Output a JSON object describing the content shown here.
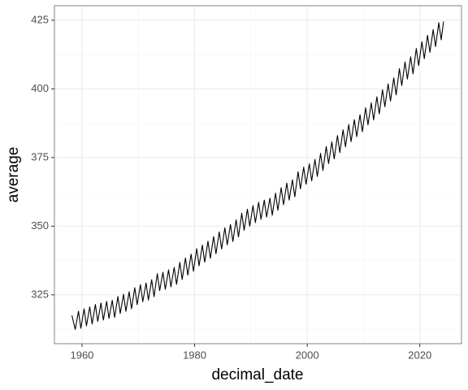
{
  "chart_data": {
    "type": "line",
    "x_label": "decimal_date",
    "y_label": "average",
    "x": [
      1958.21,
      1958.79,
      1959.37,
      1959.79,
      1960.37,
      1960.79,
      1961.37,
      1961.79,
      1962.37,
      1962.79,
      1963.37,
      1963.79,
      1964.37,
      1964.79,
      1965.37,
      1965.79,
      1966.37,
      1966.79,
      1967.37,
      1967.79,
      1968.37,
      1968.79,
      1969.37,
      1969.79,
      1970.37,
      1970.79,
      1971.37,
      1971.79,
      1972.37,
      1972.79,
      1973.37,
      1973.79,
      1974.37,
      1974.79,
      1975.37,
      1975.79,
      1976.37,
      1976.79,
      1977.37,
      1977.79,
      1978.37,
      1978.79,
      1979.37,
      1979.79,
      1980.37,
      1980.79,
      1981.37,
      1981.79,
      1982.37,
      1982.79,
      1983.37,
      1983.79,
      1984.37,
      1984.79,
      1985.37,
      1985.79,
      1986.37,
      1986.79,
      1987.37,
      1987.79,
      1988.37,
      1988.79,
      1989.37,
      1989.79,
      1990.37,
      1990.79,
      1991.37,
      1991.79,
      1992.37,
      1992.79,
      1993.37,
      1993.79,
      1994.37,
      1994.79,
      1995.37,
      1995.79,
      1996.37,
      1996.79,
      1997.37,
      1997.79,
      1998.37,
      1998.79,
      1999.37,
      1999.79,
      2000.37,
      2000.79,
      2001.37,
      2001.79,
      2002.37,
      2002.79,
      2003.37,
      2003.79,
      2004.37,
      2004.79,
      2005.37,
      2005.79,
      2006.37,
      2006.79,
      2007.37,
      2007.79,
      2008.37,
      2008.79,
      2009.37,
      2009.79,
      2010.37,
      2010.79,
      2011.37,
      2011.79,
      2012.37,
      2012.79,
      2013.37,
      2013.79,
      2014.37,
      2014.79,
      2015.37,
      2015.79,
      2016.37,
      2016.79,
      2017.37,
      2017.79,
      2018.37,
      2018.79,
      2019.37,
      2019.79,
      2020.37,
      2020.79,
      2021.37,
      2021.79,
      2022.37,
      2022.79,
      2023.37,
      2023.79,
      2024.21
    ],
    "y": [
      317.5,
      312.4,
      319.0,
      312.8,
      319.9,
      313.7,
      320.6,
      314.4,
      321.5,
      315.3,
      322.0,
      315.8,
      322.6,
      316.4,
      323.0,
      316.8,
      324.4,
      318.2,
      325.2,
      319.0,
      326.1,
      319.9,
      327.6,
      321.4,
      328.7,
      322.5,
      329.3,
      323.1,
      330.5,
      324.3,
      332.7,
      326.5,
      333.2,
      327.0,
      334.1,
      327.9,
      335.0,
      328.8,
      336.8,
      330.6,
      338.4,
      332.2,
      339.8,
      333.6,
      341.8,
      335.6,
      343.1,
      336.9,
      344.5,
      338.3,
      346.2,
      340.0,
      347.9,
      341.7,
      349.4,
      343.2,
      350.6,
      344.4,
      352.3,
      346.1,
      354.7,
      348.5,
      356.2,
      350.0,
      357.5,
      351.3,
      358.7,
      352.5,
      359.5,
      353.3,
      360.2,
      354.0,
      362.0,
      355.8,
      364.0,
      357.8,
      365.7,
      359.5,
      366.9,
      360.7,
      369.8,
      363.6,
      371.5,
      365.3,
      372.7,
      366.5,
      374.3,
      368.1,
      376.5,
      370.3,
      379.0,
      372.8,
      380.7,
      374.5,
      383.0,
      376.8,
      385.1,
      378.9,
      387.0,
      380.8,
      388.8,
      382.6,
      390.6,
      384.4,
      393.1,
      386.9,
      394.9,
      388.7,
      397.1,
      390.9,
      399.7,
      393.5,
      401.8,
      395.6,
      404.0,
      397.8,
      407.4,
      401.2,
      409.8,
      403.6,
      411.7,
      405.5,
      414.7,
      408.5,
      417.2,
      411.0,
      419.5,
      413.3,
      421.6,
      415.4,
      424.1,
      417.9,
      424.5
    ],
    "color": "#000000",
    "xlim": [
      1955.1,
      2027.4
    ],
    "xticks": [
      1960,
      1980,
      2000,
      2020
    ],
    "x_minor_ticks": [
      1970,
      1990,
      2010
    ],
    "ylim": [
      307.2,
      430.3
    ],
    "yticks": [
      325,
      350,
      375,
      400,
      425
    ],
    "y_minor_ticks": [
      312.5,
      337.5,
      362.5,
      387.5,
      412.5
    ],
    "grid": true
  }
}
